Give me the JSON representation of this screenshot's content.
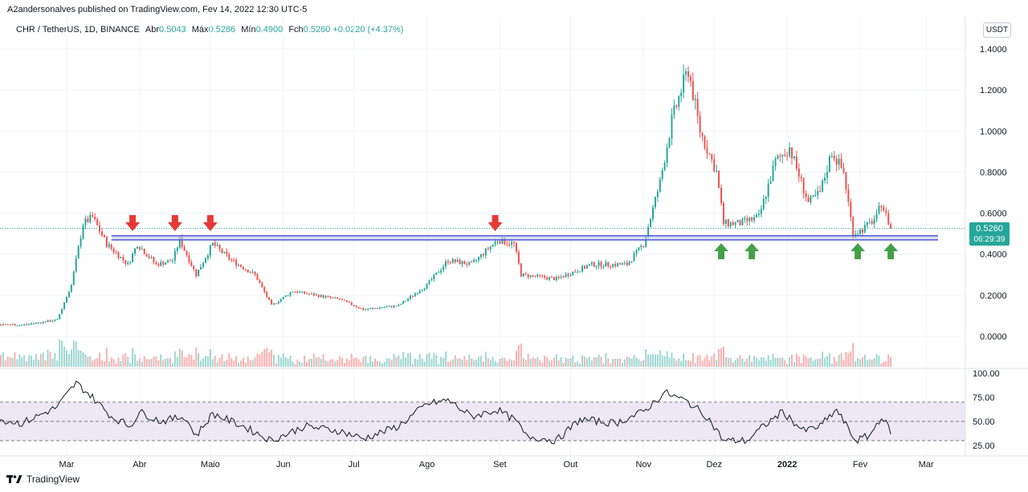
{
  "header": {
    "published": "A2andersonalves published on TradingView.com, Fev 14, 2022 12:30 UTC-5"
  },
  "legend": {
    "symbol": "CHR / TetherUS, 1D, BINANCE",
    "open_label": "Abr",
    "open": "0.5043",
    "high_label": "Máx",
    "high": "0.5286",
    "low_label": "Mín",
    "low": "0.4900",
    "close_label": "Fch",
    "close": "0.5260",
    "change": "+0.0220 (+4.37%)"
  },
  "currency_badge": "USDT",
  "footer": {
    "brand": "TradingView"
  },
  "price_tag": {
    "value": "0.5260",
    "countdown": "06:29:39"
  },
  "colors": {
    "up": "#26a69a",
    "down": "#ef5350",
    "support": "#4a5bd4",
    "rsi_band": "#ede7f6",
    "arrow_down": "#e53935",
    "arrow_up": "#43a047"
  },
  "chart_data": {
    "type": "candlestick",
    "title": "",
    "price_axis": {
      "ticks": [
        "1.4000",
        "1.2000",
        "1.0000",
        "0.8000",
        "0.6000",
        "0.4000",
        "0.2000",
        "0.0000"
      ],
      "ylim": [
        -0.1,
        1.5
      ]
    },
    "x_ticks": [
      "Mar",
      "Abr",
      "Maio",
      "Jun",
      "Jul",
      "Ago",
      "Set",
      "Out",
      "Nov",
      "Dez",
      "2022",
      "Fev",
      "Mar"
    ],
    "support_zone": {
      "low": 0.47,
      "high": 0.49
    },
    "down_arrow_dates": [
      "2021-03-29",
      "2021-04-16",
      "2021-05-01",
      "2021-08-30"
    ],
    "up_arrow_dates": [
      "2021-12-04",
      "2021-12-17",
      "2022-01-31",
      "2022-02-14"
    ],
    "price_anchors": [
      [
        "2021-01-01",
        0.05
      ],
      [
        "2021-01-20",
        0.06
      ],
      [
        "2021-02-10",
        0.055
      ],
      [
        "2021-02-25",
        0.08
      ],
      [
        "2021-03-03",
        0.25
      ],
      [
        "2021-03-08",
        0.55
      ],
      [
        "2021-03-12",
        0.58
      ],
      [
        "2021-03-18",
        0.45
      ],
      [
        "2021-03-27",
        0.35
      ],
      [
        "2021-03-31",
        0.45
      ],
      [
        "2021-04-08",
        0.35
      ],
      [
        "2021-04-15",
        0.37
      ],
      [
        "2021-04-18",
        0.47
      ],
      [
        "2021-04-25",
        0.3
      ],
      [
        "2021-05-02",
        0.45
      ],
      [
        "2021-05-10",
        0.37
      ],
      [
        "2021-05-20",
        0.3
      ],
      [
        "2021-05-27",
        0.15
      ],
      [
        "2021-06-05",
        0.22
      ],
      [
        "2021-06-15",
        0.2
      ],
      [
        "2021-06-25",
        0.18
      ],
      [
        "2021-07-05",
        0.13
      ],
      [
        "2021-07-20",
        0.15
      ],
      [
        "2021-08-01",
        0.25
      ],
      [
        "2021-08-10",
        0.37
      ],
      [
        "2021-08-20",
        0.35
      ],
      [
        "2021-08-31",
        0.47
      ],
      [
        "2021-09-07",
        0.45
      ],
      [
        "2021-09-10",
        0.3
      ],
      [
        "2021-09-25",
        0.28
      ],
      [
        "2021-10-10",
        0.35
      ],
      [
        "2021-10-25",
        0.35
      ],
      [
        "2021-11-01",
        0.45
      ],
      [
        "2021-11-08",
        0.75
      ],
      [
        "2021-11-13",
        1.05
      ],
      [
        "2021-11-17",
        1.2
      ],
      [
        "2021-11-20",
        1.3
      ],
      [
        "2021-11-25",
        1.0
      ],
      [
        "2021-12-02",
        0.8
      ],
      [
        "2021-12-05",
        0.55
      ],
      [
        "2021-12-12",
        0.55
      ],
      [
        "2021-12-20",
        0.58
      ],
      [
        "2021-12-27",
        0.85
      ],
      [
        "2022-01-02",
        0.92
      ],
      [
        "2022-01-10",
        0.65
      ],
      [
        "2022-01-15",
        0.7
      ],
      [
        "2022-01-20",
        0.9
      ],
      [
        "2022-01-25",
        0.8
      ],
      [
        "2022-01-29",
        0.5
      ],
      [
        "2022-02-02",
        0.52
      ],
      [
        "2022-02-08",
        0.58
      ],
      [
        "2022-02-10",
        0.65
      ],
      [
        "2022-02-14",
        0.526
      ]
    ],
    "volume_panel": {
      "visible": true
    },
    "rsi": {
      "ticks": [
        "100.00",
        "75.00",
        "50.00",
        "25.00"
      ],
      "ylim": [
        20,
        100
      ],
      "band": [
        30,
        70
      ],
      "midline": 50,
      "anchors": [
        [
          "2021-01-01",
          55
        ],
        [
          "2021-01-10",
          72
        ],
        [
          "2021-01-25",
          55
        ],
        [
          "2021-02-10",
          48
        ],
        [
          "2021-02-25",
          65
        ],
        [
          "2021-03-05",
          90
        ],
        [
          "2021-03-12",
          75
        ],
        [
          "2021-03-20",
          55
        ],
        [
          "2021-03-28",
          45
        ],
        [
          "2021-04-01",
          60
        ],
        [
          "2021-04-10",
          50
        ],
        [
          "2021-04-20",
          55
        ],
        [
          "2021-04-25",
          35
        ],
        [
          "2021-05-02",
          58
        ],
        [
          "2021-05-15",
          45
        ],
        [
          "2021-05-27",
          30
        ],
        [
          "2021-06-10",
          45
        ],
        [
          "2021-06-25",
          40
        ],
        [
          "2021-07-05",
          32
        ],
        [
          "2021-07-20",
          45
        ],
        [
          "2021-08-01",
          68
        ],
        [
          "2021-08-10",
          72
        ],
        [
          "2021-08-20",
          55
        ],
        [
          "2021-08-31",
          62
        ],
        [
          "2021-09-08",
          50
        ],
        [
          "2021-09-12",
          35
        ],
        [
          "2021-09-25",
          30
        ],
        [
          "2021-10-05",
          52
        ],
        [
          "2021-10-20",
          48
        ],
        [
          "2021-11-01",
          60
        ],
        [
          "2021-11-10",
          80
        ],
        [
          "2021-11-20",
          70
        ],
        [
          "2021-11-28",
          55
        ],
        [
          "2021-12-05",
          30
        ],
        [
          "2021-12-15",
          30
        ],
        [
          "2021-12-22",
          45
        ],
        [
          "2021-12-30",
          60
        ],
        [
          "2022-01-08",
          40
        ],
        [
          "2022-01-15",
          45
        ],
        [
          "2022-01-22",
          62
        ],
        [
          "2022-01-30",
          30
        ],
        [
          "2022-02-05",
          35
        ],
        [
          "2022-02-10",
          55
        ],
        [
          "2022-02-14",
          40
        ]
      ]
    }
  }
}
